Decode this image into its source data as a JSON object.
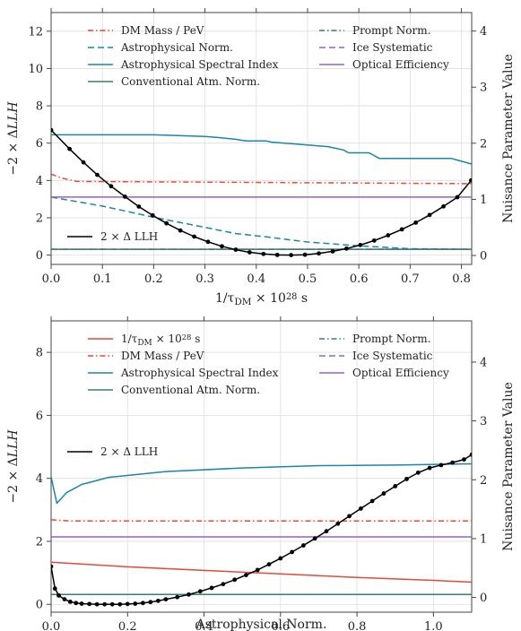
{
  "chart_data": [
    {
      "type": "line",
      "xlabel": "1/τ_DM × 10^28 s",
      "ylabel": "−2 × ΔLLH",
      "y2label": "Nuisance Parameter Value",
      "xlim": [
        0,
        0.82
      ],
      "ylim": [
        -0.5,
        13
      ],
      "y2lim": [
        -0.16,
        4.33
      ],
      "xticks": [
        "0.0",
        "0.1",
        "0.2",
        "0.3",
        "0.4",
        "0.5",
        "0.6",
        "0.7",
        "0.8"
      ],
      "yticks": [
        "0",
        "2",
        "4",
        "6",
        "8",
        "10",
        "12"
      ],
      "y2ticks": [
        "0",
        "1",
        "2",
        "3",
        "4"
      ],
      "grid": true,
      "legend_placement": "top",
      "llh_curve": {
        "name": "2 × Δ LLH",
        "legend_placement": "lower-left",
        "color": "#000000",
        "x": [
          0.0,
          0.036,
          0.063,
          0.09,
          0.117,
          0.144,
          0.171,
          0.198,
          0.225,
          0.252,
          0.279,
          0.306,
          0.333,
          0.36,
          0.387,
          0.414,
          0.441,
          0.468,
          0.495,
          0.522,
          0.549,
          0.576,
          0.603,
          0.63,
          0.657,
          0.684,
          0.711,
          0.738,
          0.765,
          0.792,
          0.819
        ],
        "y": [
          6.7,
          5.69,
          4.97,
          4.3,
          3.69,
          3.13,
          2.6,
          2.13,
          1.7,
          1.32,
          0.99,
          0.71,
          0.47,
          0.29,
          0.15,
          0.06,
          0.01,
          0.0,
          0.02,
          0.09,
          0.2,
          0.35,
          0.54,
          0.78,
          1.06,
          1.38,
          1.74,
          2.15,
          2.61,
          3.1,
          4.0
        ]
      },
      "nuisance_series": [
        {
          "name": "Astrophysical Spectral Index",
          "color": "#1a86a8",
          "style": "solid",
          "x": [
            0.0,
            0.1,
            0.2,
            0.3,
            0.33,
            0.36,
            0.38,
            0.42,
            0.43,
            0.47,
            0.54,
            0.57,
            0.58,
            0.62,
            0.64,
            0.78,
            0.82
          ],
          "y": [
            2.15,
            2.15,
            2.15,
            2.12,
            2.1,
            2.07,
            2.04,
            2.04,
            2.02,
            1.99,
            1.94,
            1.88,
            1.83,
            1.83,
            1.73,
            1.73,
            1.63
          ]
        },
        {
          "name": "DM Mass / PeV",
          "color": "#e4493a",
          "style": "dashdot",
          "x": [
            0.0,
            0.02,
            0.05,
            0.82
          ],
          "y": [
            1.45,
            1.38,
            1.32,
            1.28
          ]
        },
        {
          "name": "Astrophysical Norm.",
          "color": "#1a86a8",
          "style": "dashed",
          "x": [
            0.0,
            0.1,
            0.2,
            0.3,
            0.36,
            0.42,
            0.5,
            0.6,
            0.7,
            0.82
          ],
          "y": [
            1.04,
            0.88,
            0.68,
            0.5,
            0.39,
            0.33,
            0.24,
            0.17,
            0.12,
            0.11
          ]
        },
        {
          "name": "Optical Efficiency",
          "color": "#9461c4",
          "style": "solid",
          "x": [
            0.0,
            0.82
          ],
          "y": [
            1.04,
            1.04
          ]
        },
        {
          "name": "Ice Systematic",
          "color": "#9461c4",
          "style": "dashed",
          "x": [
            0.0,
            0.82
          ],
          "y": [
            0.11,
            0.11
          ]
        },
        {
          "name": "Prompt Norm.",
          "color": "#3d7a73",
          "style": "dashdot",
          "x": [
            0.0,
            0.82
          ],
          "y": [
            0.11,
            0.11
          ]
        },
        {
          "name": "Conventional Atm. Norm.",
          "color": "#3d7a73",
          "style": "solid",
          "x": [
            0.0,
            0.82
          ],
          "y": [
            0.11,
            0.11
          ]
        }
      ],
      "legend_left": [
        "DM Mass / PeV",
        "Astrophysical Norm.",
        "Astrophysical Spectral Index",
        "Conventional Atm. Norm."
      ],
      "legend_right": [
        "Prompt Norm.",
        "Ice Systematic",
        "Optical Efficiency"
      ]
    },
    {
      "type": "line",
      "xlabel": "Astrophysical Norm.",
      "ylabel": "−2 × ΔLLH",
      "y2label": "Nuisance Parameter Value",
      "xlim": [
        0,
        1.1
      ],
      "ylim": [
        -0.25,
        9
      ],
      "y2lim": [
        -0.25,
        4.7
      ],
      "xticks": [
        "0.0",
        "0.2",
        "0.4",
        "0.6",
        "0.8",
        "1.0"
      ],
      "yticks": [
        "0",
        "2",
        "4",
        "6",
        "8"
      ],
      "y2ticks": [
        "0",
        "1",
        "2",
        "3",
        "4"
      ],
      "grid": true,
      "legend_placement": "top",
      "llh_curve": {
        "name": "2 × Δ LLH",
        "legend_placement": "middle-left",
        "color": "#000000",
        "x": [
          0.0,
          0.01,
          0.02,
          0.035,
          0.05,
          0.065,
          0.08,
          0.1,
          0.12,
          0.14,
          0.16,
          0.18,
          0.2,
          0.22,
          0.24,
          0.26,
          0.28,
          0.3,
          0.33,
          0.36,
          0.39,
          0.42,
          0.45,
          0.48,
          0.51,
          0.54,
          0.57,
          0.6,
          0.63,
          0.66,
          0.69,
          0.72,
          0.75,
          0.78,
          0.81,
          0.84,
          0.87,
          0.9,
          0.93,
          0.96,
          0.99,
          1.02,
          1.05,
          1.08,
          1.1
        ],
        "y": [
          1.2,
          0.5,
          0.28,
          0.16,
          0.08,
          0.04,
          0.02,
          0.01,
          0.0,
          0.0,
          0.0,
          0.0,
          0.01,
          0.02,
          0.04,
          0.07,
          0.11,
          0.16,
          0.23,
          0.31,
          0.41,
          0.52,
          0.64,
          0.78,
          0.93,
          1.09,
          1.27,
          1.46,
          1.66,
          1.87,
          2.09,
          2.32,
          2.56,
          2.8,
          3.04,
          3.28,
          3.52,
          3.75,
          3.98,
          4.18,
          4.33,
          4.42,
          4.5,
          4.6,
          4.75
        ]
      },
      "nuisance_series": [
        {
          "name": "Astrophysical Spectral Index",
          "color": "#1a86a8",
          "style": "solid",
          "x": [
            0.0,
            0.015,
            0.04,
            0.08,
            0.15,
            0.3,
            0.5,
            0.7,
            0.9,
            1.1
          ],
          "y": [
            2.05,
            1.6,
            1.78,
            1.92,
            2.04,
            2.14,
            2.2,
            2.24,
            2.25,
            2.27
          ]
        },
        {
          "name": "DM Mass / PeV",
          "color": "#e4493a",
          "style": "dashdot",
          "x": [
            0.0,
            0.05,
            1.1
          ],
          "y": [
            1.32,
            1.3,
            1.3
          ]
        },
        {
          "name": "Optical Efficiency",
          "color": "#9461c4",
          "style": "solid",
          "x": [
            0.0,
            1.1
          ],
          "y": [
            1.03,
            1.03
          ]
        },
        {
          "name": "1/τ_DM × 10^28 s",
          "color": "#e4493a",
          "style": "solid",
          "x": [
            0.0,
            0.2,
            0.4,
            0.6,
            0.8,
            1.0,
            1.1
          ],
          "y": [
            0.6,
            0.52,
            0.46,
            0.4,
            0.34,
            0.29,
            0.26
          ]
        },
        {
          "name": "Ice Systematic",
          "color": "#9461c4",
          "style": "dashed",
          "x": [
            0.0,
            1.1
          ],
          "y": [
            0.05,
            0.05
          ]
        },
        {
          "name": "Prompt Norm.",
          "color": "#3d7a73",
          "style": "dashdot",
          "x": [
            0.0,
            1.1
          ],
          "y": [
            0.05,
            0.05
          ]
        },
        {
          "name": "Conventional Atm. Norm.",
          "color": "#3d7a73",
          "style": "solid",
          "x": [
            0.0,
            1.1
          ],
          "y": [
            0.05,
            0.05
          ]
        }
      ],
      "legend_left": [
        "1/τ_DM × 10^28 s",
        "DM Mass / PeV",
        "Astrophysical Spectral Index",
        "Conventional Atm. Norm."
      ],
      "legend_right": [
        "Prompt Norm.",
        "Ice Systematic",
        "Optical Efficiency"
      ]
    }
  ]
}
